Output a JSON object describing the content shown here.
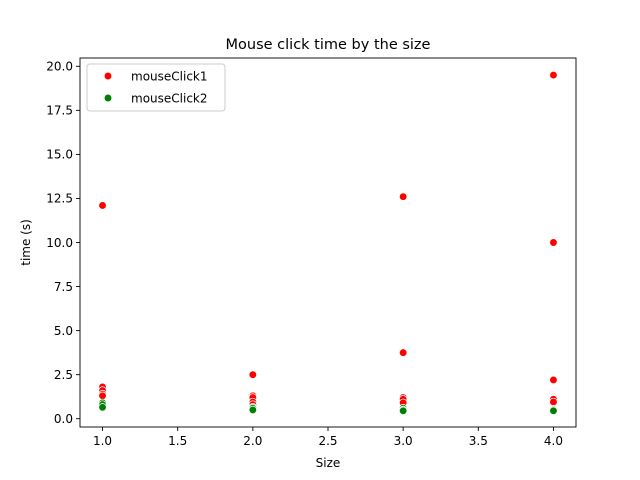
{
  "chart_data": {
    "type": "scatter",
    "title": "Mouse click time by the size",
    "xlabel": "Size",
    "ylabel": "time (s)",
    "xlim": [
      0.85,
      4.15
    ],
    "ylim": [
      -0.47,
      20.47
    ],
    "xticks": [
      1.0,
      1.5,
      2.0,
      2.5,
      3.0,
      3.5,
      4.0
    ],
    "xtick_labels": [
      "1.0",
      "1.5",
      "2.0",
      "2.5",
      "3.0",
      "3.5",
      "4.0"
    ],
    "yticks": [
      0.0,
      2.5,
      5.0,
      7.5,
      10.0,
      12.5,
      15.0,
      17.5,
      20.0
    ],
    "ytick_labels": [
      "0.0",
      "2.5",
      "5.0",
      "7.5",
      "10.0",
      "12.5",
      "15.0",
      "17.5",
      "20.0"
    ],
    "grid": false,
    "legend_position": "top-left",
    "series": [
      {
        "name": "mouseClick1",
        "color": "#ff0000",
        "points": [
          [
            1.0,
            12.1
          ],
          [
            1.0,
            1.8
          ],
          [
            1.0,
            1.6
          ],
          [
            1.0,
            1.4
          ],
          [
            1.0,
            1.3
          ],
          [
            2.0,
            2.5
          ],
          [
            2.0,
            1.3
          ],
          [
            2.0,
            1.2
          ],
          [
            2.0,
            0.95
          ],
          [
            2.0,
            0.8
          ],
          [
            3.0,
            12.6
          ],
          [
            3.0,
            3.75
          ],
          [
            3.0,
            1.2
          ],
          [
            3.0,
            1.1
          ],
          [
            3.0,
            0.9
          ],
          [
            4.0,
            19.5
          ],
          [
            4.0,
            10.0
          ],
          [
            4.0,
            2.2
          ],
          [
            4.0,
            1.1
          ],
          [
            4.0,
            0.95
          ]
        ]
      },
      {
        "name": "mouseClick2",
        "color": "#008000",
        "points": [
          [
            1.0,
            0.9
          ],
          [
            1.0,
            0.8
          ],
          [
            1.0,
            0.65
          ],
          [
            2.0,
            0.65
          ],
          [
            2.0,
            0.6
          ],
          [
            2.0,
            0.5
          ],
          [
            3.0,
            0.6
          ],
          [
            3.0,
            0.5
          ],
          [
            3.0,
            0.45
          ],
          [
            4.0,
            0.55
          ],
          [
            4.0,
            0.5
          ],
          [
            4.0,
            0.45
          ]
        ]
      }
    ]
  }
}
